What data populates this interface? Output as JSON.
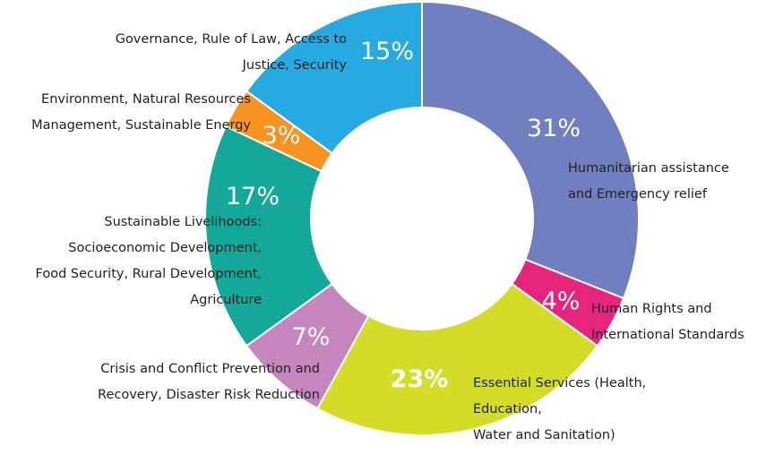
{
  "chart_data": {
    "type": "pie",
    "title": "",
    "legend": "none",
    "slices": [
      {
        "label_lines": [
          "Humanitarian assistance",
          "and Emergency relief"
        ],
        "value": 31,
        "value_label": "31%",
        "color": "#6f7fbf"
      },
      {
        "label_lines": [
          "Human Rights and",
          "International Standards"
        ],
        "value": 4,
        "value_label": "4%",
        "color": "#e6247e"
      },
      {
        "label_lines": [
          "Essential Services (Health,",
          "Education,",
          "Water and Sanitation)"
        ],
        "value": 23,
        "value_label": "23%",
        "color": "#d5dc28"
      },
      {
        "label_lines": [
          "Crisis and Conflict Prevention and",
          "Recovery, Disaster Risk Reduction"
        ],
        "value": 7,
        "value_label": "7%",
        "color": "#c585bd"
      },
      {
        "label_lines": [
          "Sustainable Livelihoods:",
          "Socioeconomic Development,",
          "Food Security, Rural Development,",
          "Agriculture"
        ],
        "value": 17,
        "value_label": "17%",
        "color": "#13a89a"
      },
      {
        "label_lines": [
          "Environment, Natural Resources",
          "Management, Sustainable Energy"
        ],
        "value": 3,
        "value_label": "3%",
        "color": "#f7931e"
      },
      {
        "label_lines": [
          "Governance, Rule of Law, Access to",
          "Justice, Security"
        ],
        "value": 15,
        "value_label": "15%",
        "color": "#27aae1"
      }
    ]
  }
}
